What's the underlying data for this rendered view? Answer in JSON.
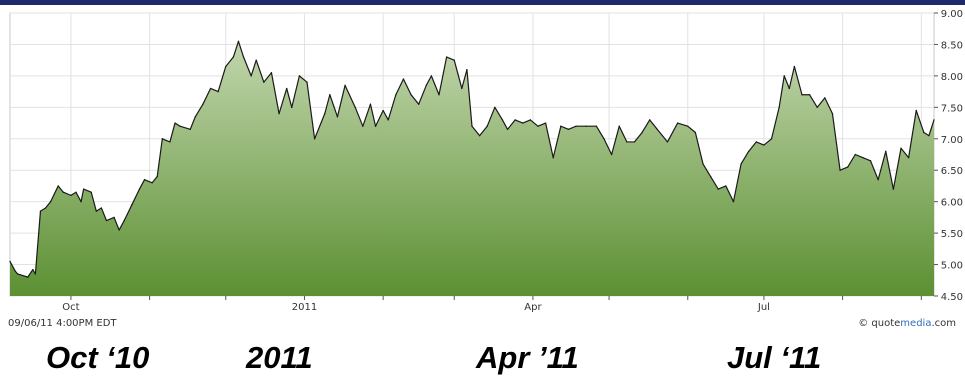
{
  "timestamp": "09/06/11 4:00PM EDT",
  "brand": {
    "prefix": "© quote",
    "highlight": "media",
    "suffix": ".com"
  },
  "big_labels": [
    "Oct ‘10",
    "2011",
    "Apr ’11",
    "Jul ‘11"
  ],
  "colors": {
    "header": "#1f2a6b",
    "area_top": "#c2d6ad",
    "area_bottom": "#5c9033",
    "line": "#1a1a1a"
  },
  "chart_data": {
    "type": "area",
    "title": "",
    "xlabel": "",
    "ylabel": "",
    "ylim": [
      4.5,
      9.0
    ],
    "y_ticks": [
      "9.00",
      "8.50",
      "8.00",
      "7.50",
      "7.00",
      "6.50",
      "6.00",
      "5.50",
      "5.00",
      "4.50"
    ],
    "x_tick_labels": [
      "Oct",
      "2011",
      "Apr",
      "Jul"
    ],
    "x_range": [
      "2010-09-07",
      "2011-09-06"
    ],
    "grid": true,
    "series": [
      {
        "points": [
          [
            "2010-09-07",
            5.05
          ],
          [
            "2010-09-09",
            4.9
          ],
          [
            "2010-09-10",
            4.85
          ],
          [
            "2010-09-14",
            4.8
          ],
          [
            "2010-09-16",
            4.92
          ],
          [
            "2010-09-17",
            4.85
          ],
          [
            "2010-09-19",
            5.85
          ],
          [
            "2010-09-21",
            5.9
          ],
          [
            "2010-09-23",
            6.0
          ],
          [
            "2010-09-26",
            6.25
          ],
          [
            "2010-09-28",
            6.15
          ],
          [
            "2010-10-01",
            6.1
          ],
          [
            "2010-10-03",
            6.15
          ],
          [
            "2010-10-05",
            6.0
          ],
          [
            "2010-10-06",
            6.2
          ],
          [
            "2010-10-09",
            6.15
          ],
          [
            "2010-10-11",
            5.85
          ],
          [
            "2010-10-13",
            5.9
          ],
          [
            "2010-10-15",
            5.7
          ],
          [
            "2010-10-18",
            5.75
          ],
          [
            "2010-10-20",
            5.55
          ],
          [
            "2010-10-22",
            5.7
          ],
          [
            "2010-10-25",
            5.95
          ],
          [
            "2010-10-28",
            6.2
          ],
          [
            "2010-10-30",
            6.35
          ],
          [
            "2010-11-02",
            6.3
          ],
          [
            "2010-11-04",
            6.4
          ],
          [
            "2010-11-06",
            7.0
          ],
          [
            "2010-11-09",
            6.95
          ],
          [
            "2010-11-11",
            7.25
          ],
          [
            "2010-11-13",
            7.2
          ],
          [
            "2010-11-17",
            7.15
          ],
          [
            "2010-11-19",
            7.35
          ],
          [
            "2010-11-22",
            7.55
          ],
          [
            "2010-11-25",
            7.8
          ],
          [
            "2010-11-28",
            7.75
          ],
          [
            "2010-12-01",
            8.15
          ],
          [
            "2010-12-04",
            8.3
          ],
          [
            "2010-12-06",
            8.55
          ],
          [
            "2010-12-08",
            8.3
          ],
          [
            "2010-12-11",
            8.0
          ],
          [
            "2010-12-13",
            8.25
          ],
          [
            "2010-12-16",
            7.9
          ],
          [
            "2010-12-19",
            8.05
          ],
          [
            "2010-12-22",
            7.4
          ],
          [
            "2010-12-25",
            7.8
          ],
          [
            "2010-12-27",
            7.5
          ],
          [
            "2010-12-30",
            8.0
          ],
          [
            "2011-01-02",
            7.9
          ],
          [
            "2011-01-05",
            7.0
          ],
          [
            "2011-01-09",
            7.4
          ],
          [
            "2011-01-11",
            7.7
          ],
          [
            "2011-01-14",
            7.35
          ],
          [
            "2011-01-17",
            7.85
          ],
          [
            "2011-01-21",
            7.5
          ],
          [
            "2011-01-24",
            7.2
          ],
          [
            "2011-01-27",
            7.55
          ],
          [
            "2011-01-29",
            7.2
          ],
          [
            "2011-02-01",
            7.45
          ],
          [
            "2011-02-03",
            7.3
          ],
          [
            "2011-02-06",
            7.7
          ],
          [
            "2011-02-09",
            7.95
          ],
          [
            "2011-02-12",
            7.7
          ],
          [
            "2011-02-15",
            7.55
          ],
          [
            "2011-02-18",
            7.85
          ],
          [
            "2011-02-20",
            8.0
          ],
          [
            "2011-02-23",
            7.7
          ],
          [
            "2011-02-26",
            8.3
          ],
          [
            "2011-03-01",
            8.25
          ],
          [
            "2011-03-04",
            7.8
          ],
          [
            "2011-03-06",
            8.1
          ],
          [
            "2011-03-08",
            7.2
          ],
          [
            "2011-03-11",
            7.05
          ],
          [
            "2011-03-14",
            7.2
          ],
          [
            "2011-03-17",
            7.5
          ],
          [
            "2011-03-20",
            7.3
          ],
          [
            "2011-03-22",
            7.15
          ],
          [
            "2011-03-25",
            7.3
          ],
          [
            "2011-03-28",
            7.25
          ],
          [
            "2011-03-31",
            7.3
          ],
          [
            "2011-04-03",
            7.2
          ],
          [
            "2011-04-06",
            7.25
          ],
          [
            "2011-04-09",
            6.7
          ],
          [
            "2011-04-12",
            7.2
          ],
          [
            "2011-04-15",
            7.15
          ],
          [
            "2011-04-18",
            7.2
          ],
          [
            "2011-04-22",
            7.2
          ],
          [
            "2011-04-26",
            7.2
          ],
          [
            "2011-04-29",
            7.0
          ],
          [
            "2011-05-02",
            6.75
          ],
          [
            "2011-05-05",
            7.2
          ],
          [
            "2011-05-08",
            6.95
          ],
          [
            "2011-05-11",
            6.95
          ],
          [
            "2011-05-14",
            7.1
          ],
          [
            "2011-05-17",
            7.3
          ],
          [
            "2011-05-20",
            7.15
          ],
          [
            "2011-05-24",
            6.95
          ],
          [
            "2011-05-28",
            7.25
          ],
          [
            "2011-06-01",
            7.2
          ],
          [
            "2011-06-04",
            7.1
          ],
          [
            "2011-06-07",
            6.6
          ],
          [
            "2011-06-10",
            6.4
          ],
          [
            "2011-06-13",
            6.2
          ],
          [
            "2011-06-16",
            6.25
          ],
          [
            "2011-06-19",
            6.0
          ],
          [
            "2011-06-22",
            6.6
          ],
          [
            "2011-06-25",
            6.8
          ],
          [
            "2011-06-28",
            6.95
          ],
          [
            "2011-07-01",
            6.9
          ],
          [
            "2011-07-04",
            7.0
          ],
          [
            "2011-07-07",
            7.5
          ],
          [
            "2011-07-09",
            8.0
          ],
          [
            "2011-07-11",
            7.8
          ],
          [
            "2011-07-13",
            8.15
          ],
          [
            "2011-07-16",
            7.7
          ],
          [
            "2011-07-19",
            7.7
          ],
          [
            "2011-07-22",
            7.5
          ],
          [
            "2011-07-25",
            7.65
          ],
          [
            "2011-07-28",
            7.4
          ],
          [
            "2011-07-31",
            6.5
          ],
          [
            "2011-08-03",
            6.55
          ],
          [
            "2011-08-06",
            6.75
          ],
          [
            "2011-08-09",
            6.7
          ],
          [
            "2011-08-12",
            6.65
          ],
          [
            "2011-08-15",
            6.35
          ],
          [
            "2011-08-18",
            6.8
          ],
          [
            "2011-08-21",
            6.2
          ],
          [
            "2011-08-24",
            6.85
          ],
          [
            "2011-08-27",
            6.7
          ],
          [
            "2011-08-30",
            7.45
          ],
          [
            "2011-09-02",
            7.1
          ],
          [
            "2011-09-04",
            7.05
          ],
          [
            "2011-09-06",
            7.3
          ]
        ]
      }
    ]
  }
}
